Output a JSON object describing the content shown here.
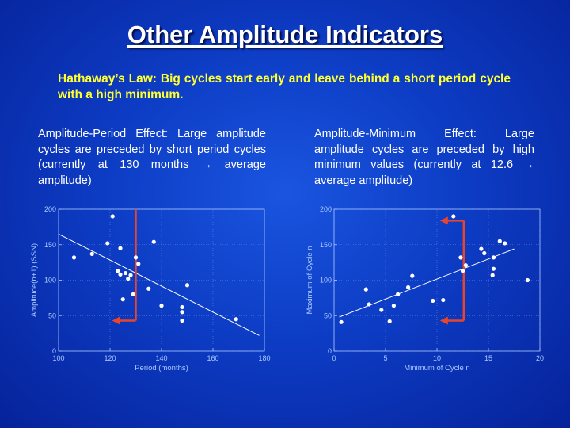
{
  "slide": {
    "title": "Other Amplitude Indicators",
    "law": "Hathaway’s Law: Big cycles start early and leave behind a short period cycle with a high minimum.",
    "left_text": "Amplitude-Period Effect: Large amplitude cycles are preceded by short period cycles (currently at 130 months → average amplitude)",
    "right_text": "Amplitude-Minimum Effect: Large amplitude cycles are preceded by high minimum values (currently at 12.6 → average amplitude)"
  },
  "colors": {
    "title": "#ffffff",
    "law": "#ffff33",
    "points": "#ffffff",
    "marker": "#e8452a",
    "axis": "#a8c8ff",
    "grid": "#5f86e6"
  },
  "chart_data": [
    {
      "type": "scatter",
      "title": "",
      "xlabel": "Period (months)",
      "ylabel": "Amplitude(n+1) (SSN)",
      "xlim": [
        100,
        180
      ],
      "ylim": [
        0,
        200
      ],
      "xticks": [
        100,
        120,
        140,
        160,
        180
      ],
      "yticks": [
        0,
        50,
        100,
        150,
        200
      ],
      "grid": true,
      "points": [
        {
          "x": 106,
          "y": 132
        },
        {
          "x": 113,
          "y": 137
        },
        {
          "x": 119,
          "y": 152
        },
        {
          "x": 121,
          "y": 190
        },
        {
          "x": 123,
          "y": 113
        },
        {
          "x": 124,
          "y": 108
        },
        {
          "x": 124,
          "y": 145
        },
        {
          "x": 125,
          "y": 73
        },
        {
          "x": 126,
          "y": 110
        },
        {
          "x": 127,
          "y": 102
        },
        {
          "x": 128,
          "y": 107
        },
        {
          "x": 129,
          "y": 80
        },
        {
          "x": 130,
          "y": 132
        },
        {
          "x": 131,
          "y": 123
        },
        {
          "x": 135,
          "y": 88
        },
        {
          "x": 137,
          "y": 154
        },
        {
          "x": 140,
          "y": 64
        },
        {
          "x": 148,
          "y": 62
        },
        {
          "x": 148,
          "y": 55
        },
        {
          "x": 148,
          "y": 43
        },
        {
          "x": 150,
          "y": 93
        },
        {
          "x": 169,
          "y": 45
        }
      ],
      "fit_line": {
        "x": [
          100,
          178
        ],
        "y": [
          165,
          22
        ]
      },
      "marker": {
        "x": 130,
        "y_top": 200,
        "y_arrow": 43
      }
    },
    {
      "type": "scatter",
      "title": "",
      "xlabel": "Minimum of Cycle n",
      "ylabel": "Maximum of Cycle n",
      "xlim": [
        0,
        20
      ],
      "ylim": [
        0,
        200
      ],
      "xticks": [
        0,
        5,
        10,
        15,
        20
      ],
      "yticks": [
        0,
        50,
        100,
        150,
        200
      ],
      "grid": true,
      "points": [
        {
          "x": 0.7,
          "y": 41
        },
        {
          "x": 3.1,
          "y": 87
        },
        {
          "x": 3.4,
          "y": 66
        },
        {
          "x": 4.6,
          "y": 58
        },
        {
          "x": 5.4,
          "y": 42
        },
        {
          "x": 5.8,
          "y": 64
        },
        {
          "x": 6.2,
          "y": 80
        },
        {
          "x": 7.2,
          "y": 90
        },
        {
          "x": 7.6,
          "y": 106
        },
        {
          "x": 9.6,
          "y": 71
        },
        {
          "x": 10.6,
          "y": 72
        },
        {
          "x": 11.6,
          "y": 190
        },
        {
          "x": 12.3,
          "y": 132
        },
        {
          "x": 12.5,
          "y": 113
        },
        {
          "x": 12.8,
          "y": 121
        },
        {
          "x": 14.3,
          "y": 144
        },
        {
          "x": 14.6,
          "y": 138
        },
        {
          "x": 15.4,
          "y": 107
        },
        {
          "x": 15.5,
          "y": 116
        },
        {
          "x": 15.5,
          "y": 132
        },
        {
          "x": 16.1,
          "y": 155
        },
        {
          "x": 16.6,
          "y": 152
        },
        {
          "x": 18.8,
          "y": 100
        }
      ],
      "fit_line": {
        "x": [
          0.5,
          17.5
        ],
        "y": [
          48,
          144
        ]
      },
      "marker": {
        "x": 12.6,
        "y_top": 184,
        "y_arrow": 43
      }
    }
  ]
}
